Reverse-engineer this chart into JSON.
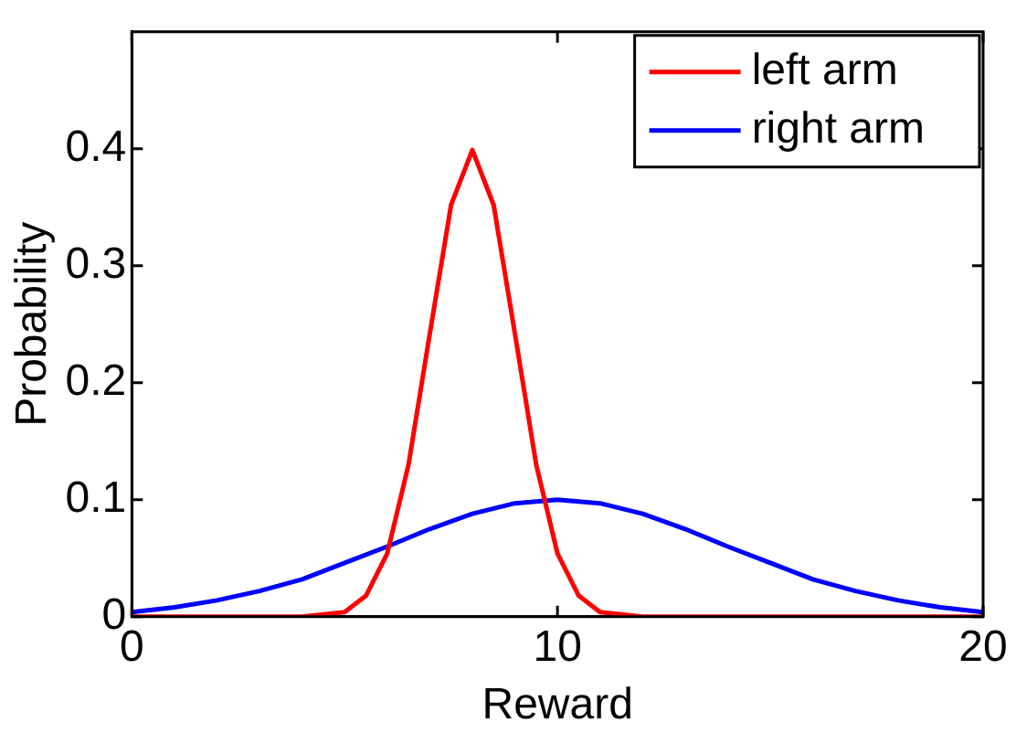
{
  "chart_data": {
    "type": "line",
    "xlabel": "Reward",
    "ylabel": "Probability",
    "xlim": [
      0,
      20
    ],
    "xticks": [
      0,
      10,
      20
    ],
    "ylim": [
      0,
      0.5
    ],
    "yticks": [
      0,
      0.1,
      0.2,
      0.3,
      0.4
    ],
    "grid": false,
    "legend": "top right",
    "marker": "none",
    "line_style": "solid",
    "series": [
      {
        "name": "left arm",
        "color": "#ff0000",
        "x": [
          0,
          3,
          4,
          5,
          5.5,
          6,
          6.5,
          7,
          7.5,
          8,
          8.5,
          9,
          9.5,
          10,
          10.5,
          11,
          12,
          13,
          20
        ],
        "values": [
          0,
          0,
          0,
          0.004,
          0.018,
          0.054,
          0.13,
          0.242,
          0.352,
          0.399,
          0.352,
          0.242,
          0.13,
          0.054,
          0.018,
          0.004,
          0,
          0,
          0
        ]
      },
      {
        "name": "right arm",
        "color": "#0000ff",
        "x": [
          0,
          1,
          2,
          3,
          4,
          5,
          6,
          7,
          8,
          9,
          10,
          11,
          12,
          13,
          14,
          15,
          16,
          17,
          18,
          19,
          20
        ],
        "values": [
          0.004,
          0.008,
          0.014,
          0.022,
          0.032,
          0.046,
          0.06,
          0.075,
          0.088,
          0.097,
          0.1,
          0.097,
          0.088,
          0.075,
          0.06,
          0.046,
          0.032,
          0.022,
          0.014,
          0.008,
          0.004
        ]
      }
    ]
  }
}
